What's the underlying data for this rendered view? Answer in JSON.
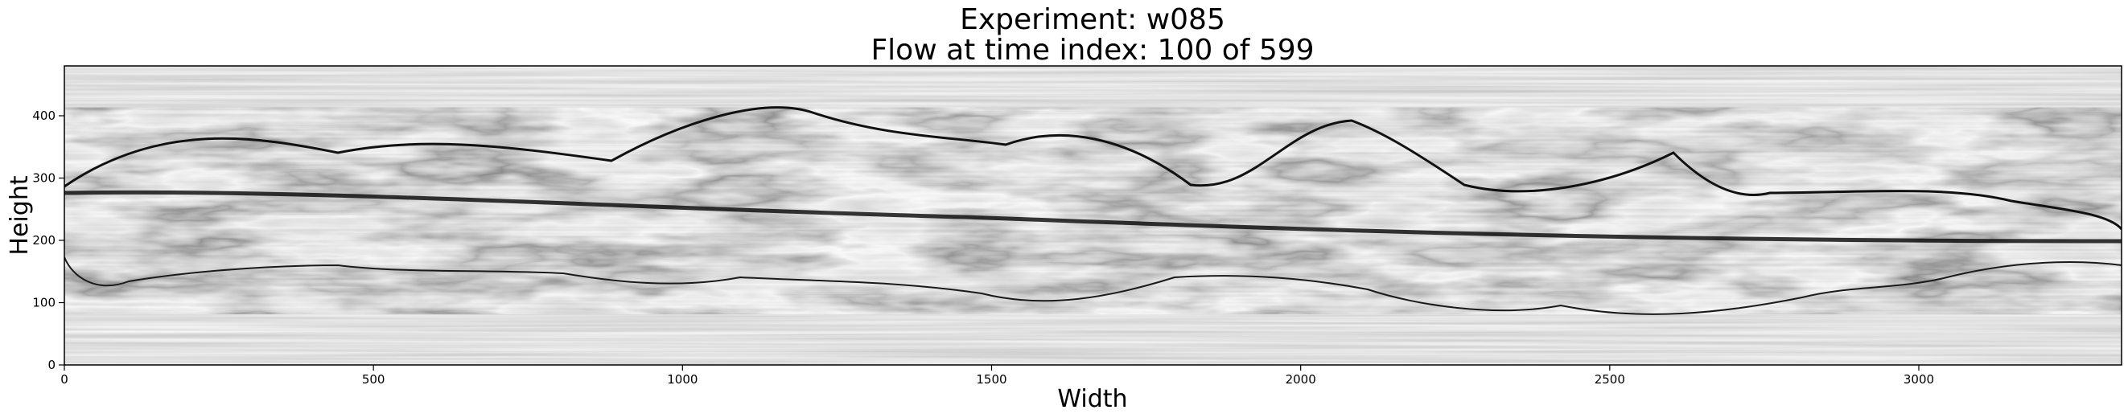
{
  "title_line1": "Experiment: w085",
  "title_line2": "Flow at time index: 100 of 599",
  "chart_data": {
    "type": "image",
    "xlabel": "Width",
    "ylabel": "Height",
    "xlim": [
      0,
      3328
    ],
    "ylim": [
      0,
      480
    ],
    "xticks": [
      0,
      500,
      1000,
      1500,
      2000,
      2500,
      3000
    ],
    "yticks": [
      0,
      100,
      200,
      300,
      400
    ],
    "colormap": "gray",
    "grid": false
  }
}
